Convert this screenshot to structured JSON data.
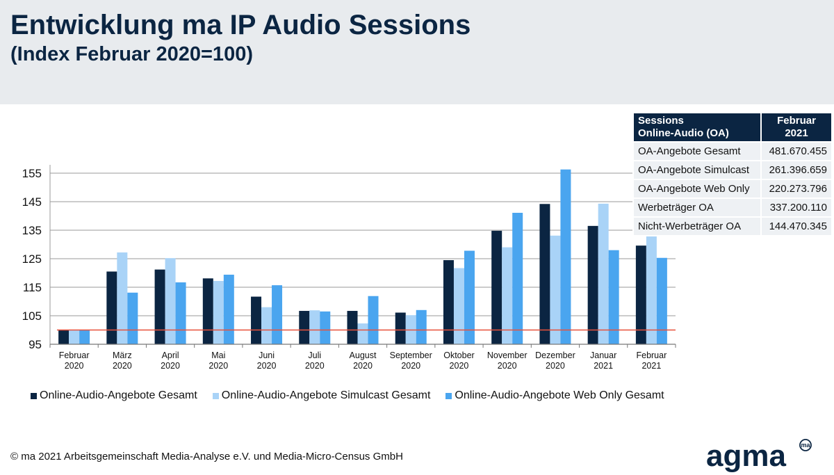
{
  "header": {
    "title": "Entwicklung ma IP Audio Sessions",
    "subtitle": "(Index Februar 2020=100)"
  },
  "chart_data": {
    "type": "bar",
    "categories": [
      [
        "Februar",
        "2020"
      ],
      [
        "März",
        "2020"
      ],
      [
        "April",
        "2020"
      ],
      [
        "Mai",
        "2020"
      ],
      [
        "Juni",
        "2020"
      ],
      [
        "Juli",
        "2020"
      ],
      [
        "August",
        "2020"
      ],
      [
        "September",
        "2020"
      ],
      [
        "Oktober",
        "2020"
      ],
      [
        "November",
        "2020"
      ],
      [
        "Dezember",
        "2020"
      ],
      [
        "Januar",
        "2021"
      ],
      [
        "Februar",
        "2021"
      ]
    ],
    "series": [
      {
        "name": "Online-Audio-Angebote Gesamt",
        "color": "#0b2542",
        "values": [
          100,
          120.5,
          121.2,
          118.1,
          111.7,
          106.7,
          106.7,
          106.1,
          124.5,
          134.8,
          144.2,
          136.5,
          129.6
        ]
      },
      {
        "name": "Online-Audio-Angebote Simulcast Gesamt",
        "color": "#a9d3f7",
        "values": [
          100,
          127.2,
          125.2,
          117.2,
          108,
          106.9,
          102.3,
          105.2,
          121.7,
          129,
          133.1,
          144.3,
          133.7
        ]
      },
      {
        "name": "Online-Audio-Angebote Web Only Gesamt",
        "color": "#4aa5ef",
        "values": [
          100,
          113.1,
          116.7,
          119.4,
          115.7,
          106.5,
          111.9,
          107,
          127.8,
          141.1,
          156.3,
          128,
          125.3
        ]
      }
    ],
    "ylim": [
      95,
      155
    ],
    "yticks": [
      95,
      105,
      115,
      125,
      135,
      145,
      155
    ],
    "reference_line": {
      "value": 100,
      "color": "#e8503a"
    },
    "grid": true,
    "legend": "bottom"
  },
  "table": {
    "header": [
      "Sessions\nOnline-Audio (OA)",
      "Februar\n2021"
    ],
    "rows": [
      [
        "OA-Angebote Gesamt",
        "481.670.455"
      ],
      [
        "OA-Angebote Simulcast",
        "261.396.659"
      ],
      [
        "OA-Angebote Web Only",
        "220.273.796"
      ],
      [
        "Werbeträger OA",
        "337.200.110"
      ],
      [
        "Nicht-Werbeträger OA",
        "144.470.345"
      ]
    ]
  },
  "footer": "© ma 2021 Arbeitsgemeinschaft Media-Analyse e.V. und Media-Micro-Census GmbH",
  "logo": {
    "text": "agma",
    "badge": "ma",
    "color": "#0b2542"
  }
}
